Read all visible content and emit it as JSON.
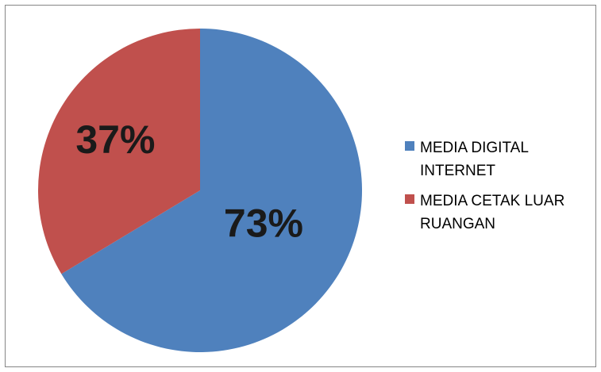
{
  "chart_data": {
    "type": "pie",
    "title": "",
    "categories": [
      "MEDIA DIGITAL INTERNET",
      "MEDIA CETAK LUAR RUANGAN"
    ],
    "values": [
      73,
      37
    ],
    "value_labels": [
      "73%",
      "37%"
    ],
    "colors": [
      "#4F81BD",
      "#C0504D"
    ],
    "legend_position": "right"
  },
  "legend": {
    "items": [
      {
        "line1": "MEDIA DIGITAL",
        "line2": "INTERNET"
      },
      {
        "line1": "MEDIA CETAK LUAR",
        "line2": "RUANGAN"
      }
    ]
  }
}
